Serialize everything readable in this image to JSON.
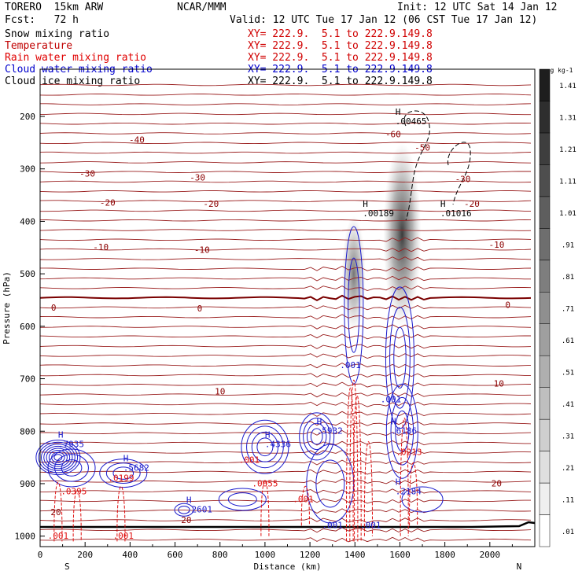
{
  "header": {
    "model": "TORERO  15km ARW",
    "org": "NCAR/MMM",
    "init": "Init: 12 UTC Sat 14 Jan 12",
    "fcst": "Fcst:   72 h",
    "valid": "Valid: 12 UTC Tue 17 Jan 12 (06 CST Tue 17 Jan 12)"
  },
  "fields": [
    {
      "name": "Snow mixing ratio",
      "xy": "XY= 222.9.  5.1 to 222.9.149.8",
      "color": "#000000"
    },
    {
      "name": "Temperature",
      "xy": "XY= 222.9.  5.1 to 222.9.149.8",
      "color": "#c00000"
    },
    {
      "name": "Rain water mixing ratio",
      "xy": "XY= 222.9.  5.1 to 222.9.149.8",
      "color": "#e00000"
    },
    {
      "name": "Cloud water mixing ratio",
      "xy": "XY= 222.9.  5.1 to 222.9.149.8",
      "color": "#0000cc"
    },
    {
      "name": "Cloud ice mixing ratio",
      "xy": "XY= 222.9.  5.1 to 222.9.149.8",
      "color": "#000000"
    }
  ],
  "chart_data": {
    "type": "heatmap",
    "title": "",
    "xlabel": "Distance (km)",
    "ylabel": "Pressure (hPa)",
    "xlim": [
      0,
      2200
    ],
    "ylim": [
      1020,
      110
    ],
    "x_ticks": [
      0,
      200,
      400,
      600,
      800,
      1000,
      1200,
      1400,
      1600,
      1800,
      2000
    ],
    "y_ticks": [
      200,
      300,
      400,
      500,
      600,
      700,
      800,
      900,
      1000
    ],
    "x_end_labels": {
      "left": "S",
      "right": "N"
    },
    "colorbar": {
      "unit": "g kg-1",
      "levels": [
        0.01,
        0.11,
        0.21,
        0.31,
        0.41,
        0.51,
        0.61,
        0.71,
        0.81,
        0.91,
        1.01,
        1.11,
        1.21,
        1.31,
        1.41
      ],
      "labels": [
        ".01",
        ".11",
        ".21",
        ".31",
        ".41",
        ".51",
        ".61",
        ".71",
        ".81",
        ".91",
        "1.01",
        "1.11",
        "1.21",
        "1.31",
        "1.41"
      ]
    },
    "temperature_labels": [
      {
        "x": 430,
        "p": 250,
        "label": "-40"
      },
      {
        "x": 1570,
        "p": 240,
        "label": "-60"
      },
      {
        "x": 1700,
        "p": 265,
        "label": "-50"
      },
      {
        "x": 210,
        "p": 315,
        "label": "-30"
      },
      {
        "x": 700,
        "p": 322,
        "label": "-30"
      },
      {
        "x": 1880,
        "p": 325,
        "label": "-30"
      },
      {
        "x": 300,
        "p": 370,
        "label": "-20"
      },
      {
        "x": 760,
        "p": 372,
        "label": "-20"
      },
      {
        "x": 1920,
        "p": 372,
        "label": "-20"
      },
      {
        "x": 270,
        "p": 455,
        "label": "-10"
      },
      {
        "x": 720,
        "p": 460,
        "label": "-10"
      },
      {
        "x": 2030,
        "p": 450,
        "label": "-10"
      },
      {
        "x": 60,
        "p": 570,
        "label": "0"
      },
      {
        "x": 710,
        "p": 572,
        "label": "0"
      },
      {
        "x": 2080,
        "p": 565,
        "label": "0"
      },
      {
        "x": 800,
        "p": 730,
        "label": "10"
      },
      {
        "x": 2040,
        "p": 715,
        "label": "10"
      },
      {
        "x": 70,
        "p": 960,
        "label": "20"
      },
      {
        "x": 650,
        "p": 975,
        "label": "20"
      },
      {
        "x": 2030,
        "p": 905,
        "label": "20"
      }
    ],
    "maxima": [
      {
        "x": 1580,
        "p": 215,
        "value": ".00465",
        "series": "Cloud ice mixing ratio"
      },
      {
        "x": 1435,
        "p": 390,
        "value": ".00189",
        "series": "Cloud ice mixing ratio"
      },
      {
        "x": 1780,
        "p": 390,
        "value": ".01016",
        "series": "Cloud ice mixing ratio"
      },
      {
        "x": 80,
        "p": 830,
        "value": ".7935",
        "series": "Cloud water mixing ratio"
      },
      {
        "x": 1000,
        "p": 830,
        "value": ".4336",
        "series": "Cloud water mixing ratio"
      },
      {
        "x": 1230,
        "p": 805,
        "value": ".5932",
        "series": "Cloud water mixing ratio"
      },
      {
        "x": 1560,
        "p": 805,
        "value": ".6186",
        "series": "Cloud water mixing ratio"
      },
      {
        "x": 370,
        "p": 875,
        "value": ".5682",
        "series": "Cloud water mixing ratio"
      },
      {
        "x": 650,
        "p": 955,
        "value": ".2601",
        "series": "Cloud water mixing ratio"
      },
      {
        "x": 1580,
        "p": 920,
        "value": ".2184",
        "series": "Cloud water mixing ratio"
      }
    ],
    "other_labels": [
      {
        "x": 1380,
        "p": 680,
        "value": ".001",
        "series": "Cloud water mixing ratio"
      },
      {
        "x": 1560,
        "p": 745,
        "value": ".001",
        "series": "Cloud water mixing ratio"
      },
      {
        "x": 1300,
        "p": 985,
        "value": ".001",
        "series": "Cloud water mixing ratio"
      },
      {
        "x": 1470,
        "p": 985,
        "value": ".001",
        "series": "Cloud water mixing ratio"
      },
      {
        "x": 150,
        "p": 920,
        "value": ".0395",
        "series": "Rain water mixing ratio"
      },
      {
        "x": 360,
        "p": 895,
        "value": ".0199",
        "series": "Rain water mixing ratio"
      },
      {
        "x": 1000,
        "p": 905,
        "value": ".0055",
        "series": "Rain water mixing ratio"
      },
      {
        "x": 930,
        "p": 860,
        "value": ".001",
        "series": "Rain water mixing ratio"
      },
      {
        "x": 1170,
        "p": 935,
        "value": ".001",
        "series": "Rain water mixing ratio"
      },
      {
        "x": 1640,
        "p": 845,
        "value": ".0213",
        "series": "Rain water mixing ratio"
      },
      {
        "x": 80,
        "p": 1005,
        "value": ".001",
        "series": "Rain water mixing ratio"
      },
      {
        "x": 370,
        "p": 1005,
        "value": ".001",
        "series": "Rain water mixing ratio"
      }
    ],
    "cloud_ice_columns": [
      {
        "x": 1395,
        "p_top": 390,
        "p_bottom": 610,
        "max": 0.5
      },
      {
        "x": 1610,
        "p_top": 250,
        "p_bottom": 600,
        "max": 1.0
      }
    ]
  }
}
